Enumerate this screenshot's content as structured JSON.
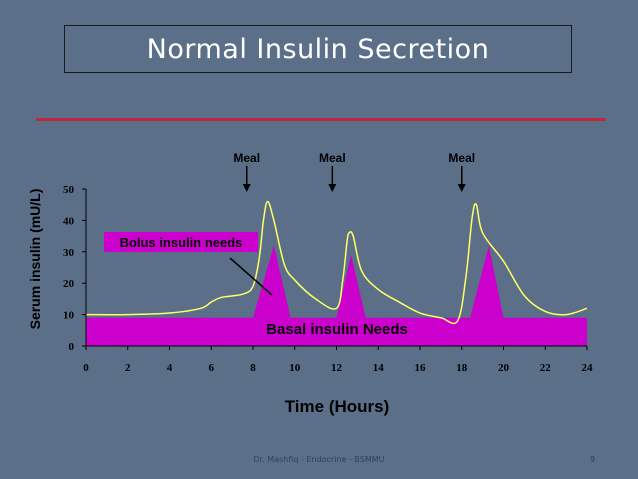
{
  "slide": {
    "title": "Normal Insulin Secretion",
    "footer": "Dr. Mashfiq - Endocrine - BSMMU",
    "page_number": "9"
  },
  "colors": {
    "background": "#5b6f88",
    "title_rule": "#c0283f",
    "insulin_area": "#cc00cc",
    "serum_curve": "#ffff66"
  },
  "chart_data": {
    "type": "line",
    "title": "",
    "xlabel": "Time (Hours)",
    "ylabel": "Serum insulin (mU/L)",
    "xlim": [
      0,
      24
    ],
    "ylim": [
      0,
      50
    ],
    "x_ticks": [
      0,
      2,
      4,
      6,
      8,
      10,
      12,
      14,
      16,
      18,
      20,
      22,
      24
    ],
    "y_ticks": [
      0,
      10,
      20,
      30,
      40,
      50
    ],
    "grid": false,
    "series": [
      {
        "name": "",
        "values": [
          [
            0,
            10
          ],
          [
            2,
            10
          ],
          [
            4,
            10.5
          ],
          [
            5.5,
            12
          ],
          [
            6,
            14
          ],
          [
            6.5,
            15.5
          ],
          [
            7.5,
            16.5
          ],
          [
            8,
            19
          ],
          [
            8.3,
            28
          ],
          [
            8.5,
            40
          ],
          [
            8.7,
            46
          ],
          [
            9,
            40
          ],
          [
            9.5,
            26
          ],
          [
            10,
            21
          ],
          [
            11,
            15
          ],
          [
            12,
            12
          ],
          [
            12.3,
            21
          ],
          [
            12.5,
            33
          ],
          [
            12.6,
            36
          ],
          [
            12.8,
            35
          ],
          [
            13.2,
            24
          ],
          [
            14,
            18
          ],
          [
            15,
            14
          ],
          [
            16,
            10.5
          ],
          [
            17,
            9
          ],
          [
            17.8,
            8
          ],
          [
            18.2,
            22
          ],
          [
            18.5,
            41
          ],
          [
            18.7,
            45
          ],
          [
            19,
            36
          ],
          [
            20,
            27
          ],
          [
            21,
            16
          ],
          [
            22,
            11
          ],
          [
            23,
            10
          ],
          [
            24,
            12
          ]
        ]
      }
    ],
    "basal": {
      "label": "Basal insulin Needs",
      "level": 9
    },
    "bolus": {
      "label": "Bolus insulin needs",
      "peaks": [
        {
          "start": 8.0,
          "peak_x": 9.0,
          "peak_y": 32,
          "end": 9.8
        },
        {
          "start": 12.0,
          "peak_x": 12.7,
          "peak_y": 29,
          "end": 13.4
        },
        {
          "start": 18.4,
          "peak_x": 19.3,
          "peak_y": 32,
          "end": 20.0
        }
      ]
    },
    "annotations": [
      {
        "text": "Meal",
        "x": 7.7
      },
      {
        "text": "Meal",
        "x": 11.8
      },
      {
        "text": "Meal",
        "x": 18.0
      }
    ]
  }
}
